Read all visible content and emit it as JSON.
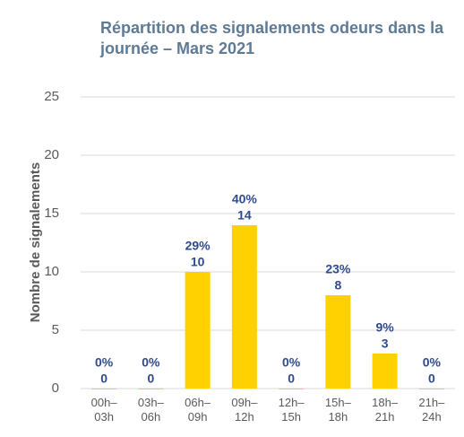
{
  "chart_data": {
    "type": "bar",
    "title": "Répartition des signalements odeurs dans la journée – Mars 2021",
    "y_label": "Nombre de signalements",
    "categories": [
      "00h–03h",
      "03h–06h",
      "06h–09h",
      "09h–12h",
      "12h–15h",
      "15h–18h",
      "18h–21h",
      "21h–24h"
    ],
    "values": [
      0,
      0,
      10,
      14,
      0,
      8,
      3,
      0
    ],
    "percent_labels": [
      "0%",
      "0%",
      "29%",
      "40%",
      "0%",
      "23%",
      "9%",
      "0%"
    ],
    "color": "#ffd100",
    "ylim": [
      0,
      25
    ],
    "yticks": [
      0,
      5,
      10,
      15,
      20,
      25
    ],
    "grid": true
  }
}
